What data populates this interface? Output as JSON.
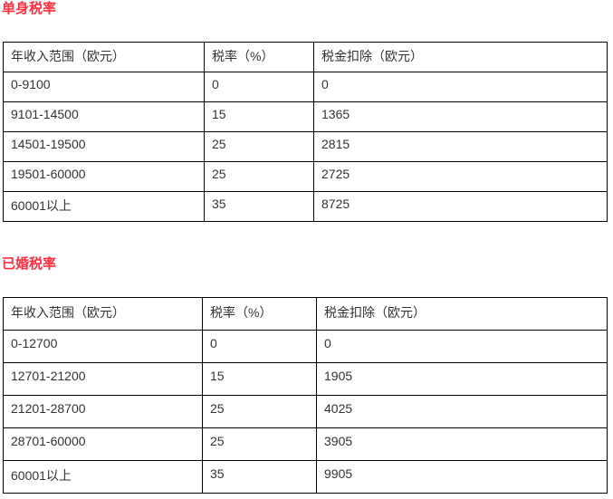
{
  "sections": [
    {
      "title": "单身税率",
      "headers": [
        "年收入范围（欧元）",
        "税率（%）",
        "税金扣除（欧元）"
      ],
      "rows": [
        [
          "0-9100",
          "0",
          "0"
        ],
        [
          "9101-14500",
          "15",
          "1365"
        ],
        [
          "14501-19500",
          "25",
          "2815"
        ],
        [
          "19501-60000",
          "25",
          "2725"
        ],
        [
          "60001以上",
          "35",
          "8725"
        ]
      ]
    },
    {
      "title": "已婚税率",
      "headers": [
        "年收入范围（欧元）",
        "税率（%）",
        "税金扣除（欧元）"
      ],
      "rows": [
        [
          "0-12700",
          "0",
          "0"
        ],
        [
          "12701-21200",
          "15",
          "1905"
        ],
        [
          "21201-28700",
          "25",
          "4025"
        ],
        [
          "28701-60000",
          "25",
          "3905"
        ],
        [
          "60001以上",
          "35",
          "9905"
        ]
      ]
    }
  ],
  "colors": {
    "title": "#ff2d3d",
    "text": "#333333",
    "border": "#000000"
  }
}
